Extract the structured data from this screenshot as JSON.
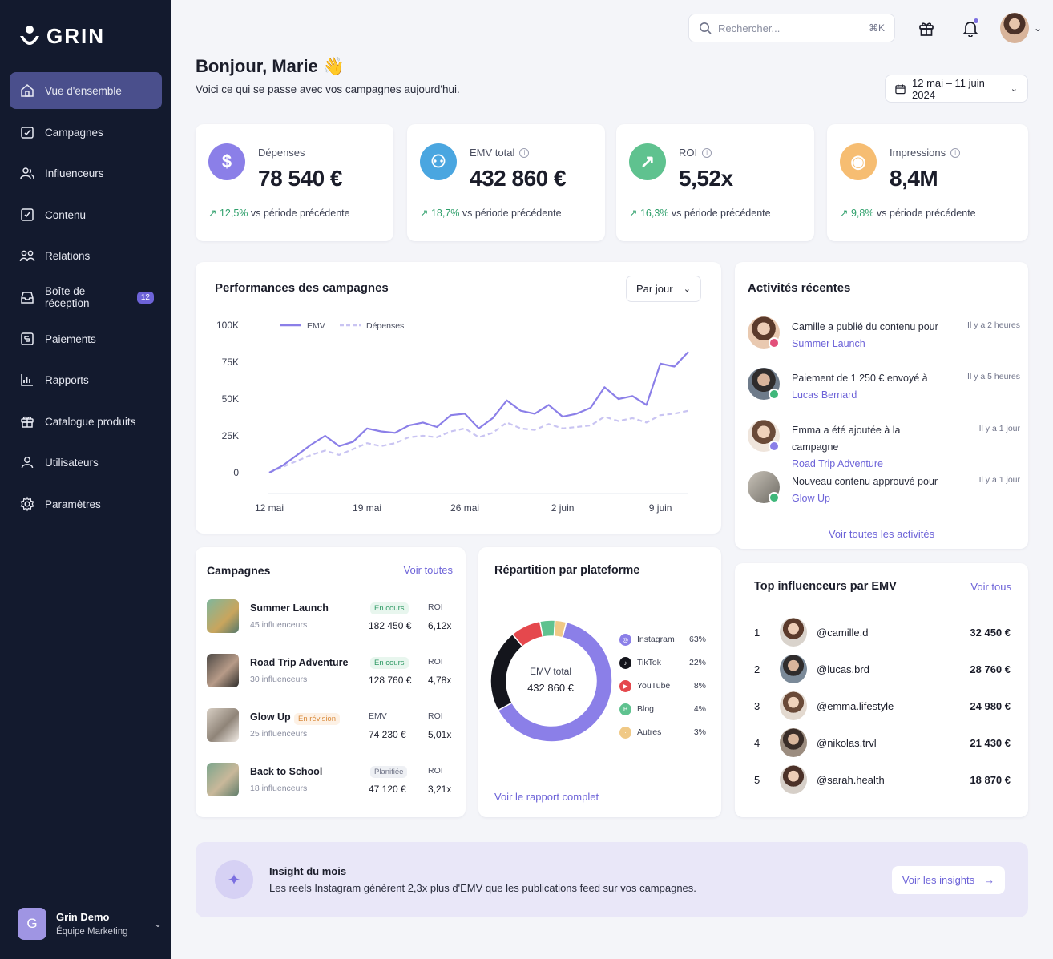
{
  "app": {
    "brand": "GRIN"
  },
  "sidebar": {
    "items": [
      {
        "label": "Vue d'ensemble",
        "icon": "home-icon",
        "active": true
      },
      {
        "label": "Campagnes",
        "icon": "campaign-icon"
      },
      {
        "label": "Influenceurs",
        "icon": "users-icon"
      },
      {
        "label": "Contenu",
        "icon": "content-icon"
      },
      {
        "label": "Relations",
        "icon": "relations-icon"
      },
      {
        "label": "Boîte de réception",
        "icon": "inbox-icon",
        "badge": "12"
      },
      {
        "label": "Paiements",
        "icon": "payments-icon"
      },
      {
        "label": "Rapports",
        "icon": "reports-icon"
      },
      {
        "label": "Catalogue produits",
        "icon": "gift-icon"
      },
      {
        "label": "Utilisateurs",
        "icon": "user-icon"
      },
      {
        "label": "Paramètres",
        "icon": "gear-icon"
      }
    ],
    "user": {
      "initial": "G",
      "name": "Grin Demo",
      "team": "Équipe Marketing"
    }
  },
  "header": {
    "search_placeholder": "Rechercher...",
    "search_shortcut": "⌘K",
    "greeting": "Bonjour, Marie 👋",
    "subtitle": "Voici ce qui se passe avec vos campagnes aujourd'hui.",
    "date_range": "12 mai – 11 juin 2024"
  },
  "kpis": [
    {
      "label": "Dépenses",
      "value": "78 540 €",
      "delta": "12,5%",
      "delta_text": " vs période précédente",
      "color": "#8b7fe8",
      "icon": "dollar-icon",
      "info": false
    },
    {
      "label": "EMV total",
      "value": "432 860 €",
      "delta": "18,7%",
      "delta_text": " vs période précédente",
      "color": "#4aa6e0",
      "icon": "group-icon",
      "info": true
    },
    {
      "label": "ROI",
      "value": "5,52x",
      "delta": "16,3%",
      "delta_text": " vs période précédente",
      "color": "#5fc28f",
      "icon": "trend-icon",
      "info": true
    },
    {
      "label": "Impressions",
      "value": "8,4M",
      "delta": "9,8%",
      "delta_text": " vs période précédente",
      "color": "#f6bd72",
      "icon": "eye-icon",
      "info": true
    }
  ],
  "performance": {
    "title": "Performances des campagnes",
    "period": "Par jour"
  },
  "chart_data": {
    "type": "line",
    "x": [
      "12 mai",
      "13 mai",
      "14 mai",
      "15 mai",
      "16 mai",
      "17 mai",
      "18 mai",
      "19 mai",
      "20 mai",
      "21 mai",
      "22 mai",
      "23 mai",
      "24 mai",
      "25 mai",
      "26 mai",
      "27 mai",
      "28 mai",
      "29 mai",
      "30 mai",
      "31 mai",
      "1 juin",
      "2 juin",
      "3 juin",
      "4 juin",
      "5 juin",
      "6 juin",
      "7 juin",
      "8 juin",
      "9 juin",
      "10 juin",
      "11 juin"
    ],
    "tick_labels": [
      "12 mai",
      "19 mai",
      "26 mai",
      "2 juin",
      "9 juin"
    ],
    "series": [
      {
        "name": "EMV",
        "color": "#8b7fe8",
        "dash": false,
        "values": [
          0,
          5,
          12,
          19,
          25,
          18,
          21,
          30,
          28,
          27,
          32,
          34,
          31,
          39,
          40,
          30,
          37,
          49,
          42,
          40,
          46,
          38,
          40,
          44,
          58,
          50,
          52,
          46,
          74,
          72,
          82
        ]
      },
      {
        "name": "Dépenses",
        "color": "#c9c4f2",
        "dash": true,
        "values": [
          0,
          4,
          8,
          12,
          15,
          12,
          16,
          20,
          18,
          20,
          24,
          25,
          24,
          28,
          30,
          24,
          27,
          34,
          30,
          29,
          33,
          30,
          31,
          32,
          38,
          35,
          37,
          34,
          39,
          40,
          42
        ]
      }
    ],
    "y_ticks": [
      "100K",
      "75K",
      "50K",
      "25K",
      "0"
    ],
    "ylim": [
      0,
      100
    ],
    "legend": "top-left"
  },
  "activities": {
    "title": "Activités récentes",
    "items": [
      {
        "text": "Camille a publié du contenu pour ",
        "link": "Summer Launch",
        "time": "Il y a 2 heures",
        "badge_color": "#e2507a"
      },
      {
        "text": "Paiement de 1 250 € envoyé à ",
        "link": "Lucas Bernard",
        "time": "Il y a 5 heures",
        "badge_color": "#3fb77a"
      },
      {
        "text": "Emma a été ajoutée à la campagne ",
        "link": "Road Trip Adventure",
        "time": "Il y a 1 jour",
        "badge_color": "#8b7fe8"
      },
      {
        "text": "Nouveau contenu approuvé pour ",
        "link": "Glow Up",
        "time": "Il y a 1 jour",
        "badge_color": "#3fb77a"
      }
    ],
    "see_all": "Voir toutes les activités"
  },
  "campaigns": {
    "title": "Campagnes",
    "see_all": "Voir toutes",
    "rows": [
      {
        "name": "Summer Launch",
        "sub": "45 influenceurs",
        "status": "En cours",
        "status_style": "green",
        "emv_label": "",
        "emv": "182 450 €",
        "roi_label": "ROI",
        "roi": "6,12x"
      },
      {
        "name": "Road Trip Adventure",
        "sub": "30 influenceurs",
        "status": "En cours",
        "status_style": "green",
        "emv_label": "",
        "emv": "128 760 €",
        "roi_label": "ROI",
        "roi": "4,78x"
      },
      {
        "name": "Glow Up",
        "sub": "25 influenceurs",
        "status": "En révision",
        "status_style": "orange",
        "emv_label": "EMV",
        "emv": "74 230 €",
        "roi_label": "ROI",
        "roi": "5,01x"
      },
      {
        "name": "Back to School",
        "sub": "18 influenceurs",
        "status": "Planifiée",
        "status_style": "gray",
        "emv_label": "",
        "emv": "47 120 €",
        "roi_label": "ROI",
        "roi": "3,21x"
      }
    ]
  },
  "platforms": {
    "title": "Répartition par plateforme",
    "center_label": "EMV total",
    "center_value": "432 860 €",
    "report_link": "Voir le rapport complet",
    "slices": [
      {
        "name": "Instagram",
        "pct": "63%",
        "value": 63,
        "color": "#8b7fe8"
      },
      {
        "name": "TikTok",
        "pct": "22%",
        "value": 22,
        "color": "#14151c"
      },
      {
        "name": "YouTube",
        "pct": "8%",
        "value": 8,
        "color": "#e5484d"
      },
      {
        "name": "Blog",
        "pct": "4%",
        "value": 4,
        "color": "#5fc28f"
      },
      {
        "name": "Autres",
        "pct": "3%",
        "value": 3,
        "color": "#f0c986"
      }
    ]
  },
  "top_influencers": {
    "title": "Top influenceurs par EMV",
    "see_all": "Voir tous",
    "rows": [
      {
        "rank": "1",
        "handle": "@camille.d",
        "emv": "32 450 €"
      },
      {
        "rank": "2",
        "handle": "@lucas.brd",
        "emv": "28 760 €"
      },
      {
        "rank": "3",
        "handle": "@emma.lifestyle",
        "emv": "24 980 €"
      },
      {
        "rank": "4",
        "handle": "@nikolas.trvl",
        "emv": "21 430 €"
      },
      {
        "rank": "5",
        "handle": "@sarah.health",
        "emv": "18 870 €"
      }
    ]
  },
  "insight": {
    "title": "Insight du mois",
    "text": "Les reels Instagram génèrent 2,3x plus d'EMV que les publications feed sur vos campagnes.",
    "button": "Voir les insights"
  }
}
